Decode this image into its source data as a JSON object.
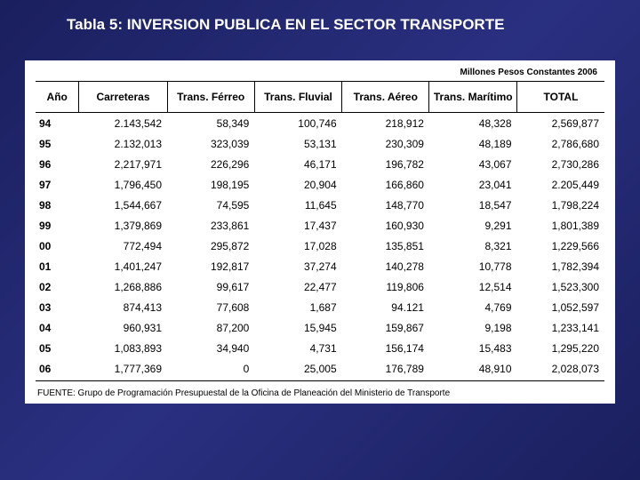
{
  "title": "Tabla 5:  INVERSION PUBLICA EN EL SECTOR TRANSPORTE",
  "subtitle": "Millones Pesos Constantes 2006",
  "source": "FUENTE: Grupo de Programación Presupuestal de la Oficina de Planeación del Ministerio de Transporte",
  "columns": [
    "Año",
    "Carreteras",
    "Trans. Férreo",
    "Trans. Fluvial",
    "Trans. Aéreo",
    "Trans. Marítimo",
    "TOTAL"
  ],
  "rows": [
    [
      "94",
      "2.143,542",
      "58,349",
      "100,746",
      "218,912",
      "48,328",
      "2,569,877"
    ],
    [
      "95",
      "2.132,013",
      "323,039",
      "53,131",
      "230,309",
      "48,189",
      "2,786,680"
    ],
    [
      "96",
      "2,217,971",
      "226,296",
      "46,171",
      "196,782",
      "43,067",
      "2,730,286"
    ],
    [
      "97",
      "1,796,450",
      "198,195",
      "20,904",
      "166,860",
      "23,041",
      "2.205,449"
    ],
    [
      "98",
      "1,544,667",
      "74,595",
      "11,645",
      "148,770",
      "18,547",
      "1,798,224"
    ],
    [
      "99",
      "1,379,869",
      "233,861",
      "17,437",
      "160,930",
      "9,291",
      "1,801,389"
    ],
    [
      "00",
      "772,494",
      "295,872",
      "17,028",
      "135,851",
      "8,321",
      "1,229,566"
    ],
    [
      "01",
      "1,401,247",
      "192,817",
      "37,274",
      "140,278",
      "10,778",
      "1,782,394"
    ],
    [
      "02",
      "1,268,886",
      "99,617",
      "22,477",
      "119,806",
      "12,514",
      "1,523,300"
    ],
    [
      "03",
      "874,413",
      "77,608",
      "1,687",
      "94.121",
      "4,769",
      "1,052,597"
    ],
    [
      "04",
      "960,931",
      "87,200",
      "15,945",
      "159,867",
      "9,198",
      "1,233,141"
    ],
    [
      "05",
      "1,083,893",
      "34,940",
      "4,731",
      "156,174",
      "15,483",
      "1,295,220"
    ],
    [
      "06",
      "1,777,369",
      "0",
      "25,005",
      "176,789",
      "48,910",
      "2,028,073"
    ]
  ]
}
